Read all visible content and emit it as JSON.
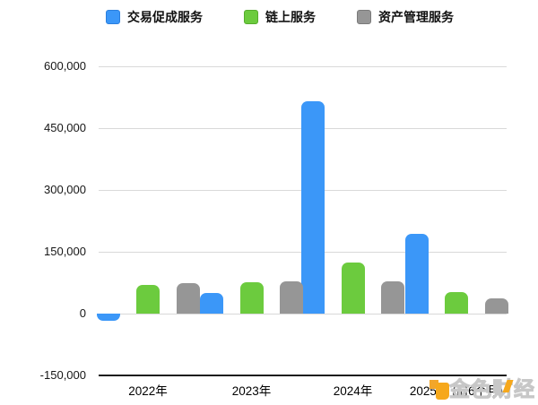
{
  "legend": {
    "items": [
      {
        "label": "交易促成服务",
        "color": "#3B97F8",
        "border": "#2B7FDE"
      },
      {
        "label": "链上服务",
        "color": "#6CCB3E",
        "border": "#55AC2C"
      },
      {
        "label": "资产管理服务",
        "color": "#969696",
        "border": "#7A7A7A"
      }
    ]
  },
  "chart_data": {
    "type": "bar",
    "title": "",
    "categories": [
      "2022年",
      "2023年",
      "2024年",
      "2025年 (前6个月)"
    ],
    "series": [
      {
        "name": "交易促成服务",
        "color": "#3B97F8",
        "values": [
          -18000,
          49000,
          516000,
          193000
        ]
      },
      {
        "name": "链上服务",
        "color": "#6CCB3E",
        "values": [
          69000,
          76000,
          124000,
          52000
        ]
      },
      {
        "name": "资产管理服务",
        "color": "#969696",
        "values": [
          73000,
          78000,
          78000,
          37000
        ]
      }
    ],
    "ylim": [
      -150000,
      600000
    ],
    "ytick_step": 150000,
    "yticks": [
      {
        "value": 600000,
        "label": "600,000"
      },
      {
        "value": 450000,
        "label": "450,000"
      },
      {
        "value": 300000,
        "label": "300,000"
      },
      {
        "value": 150000,
        "label": "150,000"
      },
      {
        "value": 0,
        "label": "0"
      },
      {
        "value": -150000,
        "label": "-150,000"
      }
    ],
    "grid": "horizontal",
    "legend_position": "top"
  },
  "watermark": {
    "text": "金色财经"
  }
}
